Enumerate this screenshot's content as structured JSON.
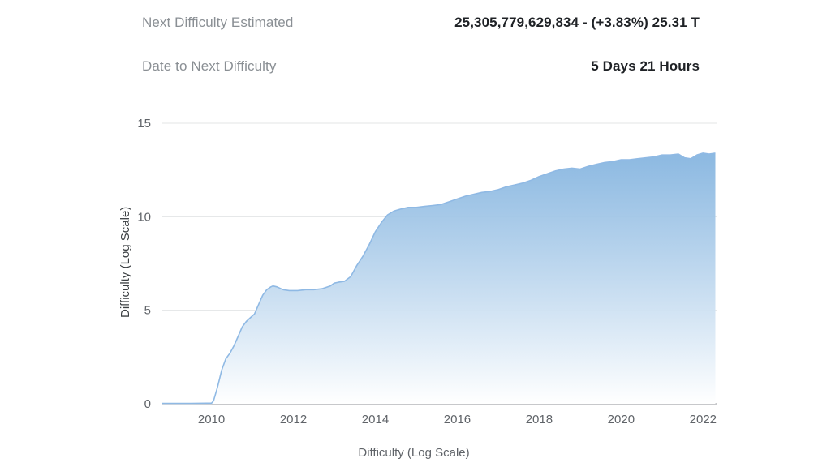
{
  "header": {
    "rows": [
      {
        "label": "Next Difficulty Estimated",
        "value": "25,305,779,629,834 - (+3.83%) 25.31 T"
      },
      {
        "label": "Date to Next Difficulty",
        "value": "5 Days 21 Hours"
      }
    ]
  },
  "chart_data": {
    "type": "area",
    "title": "",
    "xlabel": "Difficulty (Log Scale)",
    "ylabel": "Difficulty (Log Scale)",
    "xlim": [
      2008.8,
      2022.35
    ],
    "ylim": [
      0,
      15
    ],
    "xticks": [
      2010,
      2012,
      2014,
      2016,
      2018,
      2020,
      2022
    ],
    "yticks": [
      0,
      5,
      10,
      15
    ],
    "grid": true,
    "legend": false,
    "colors": {
      "line": "#8fb9e4",
      "fill_top": "#7fb1de",
      "fill_bottom": "#ffffff",
      "grid": "#e3e4e6",
      "axis": "#8f9297",
      "tick_label": "#5f6368"
    },
    "series": [
      {
        "name": "Difficulty (Log Scale)",
        "points": [
          [
            2008.8,
            0.02
          ],
          [
            2009.5,
            0.02
          ],
          [
            2010.0,
            0.03
          ],
          [
            2010.05,
            0.15
          ],
          [
            2010.15,
            0.9
          ],
          [
            2010.25,
            1.8
          ],
          [
            2010.35,
            2.4
          ],
          [
            2010.45,
            2.7
          ],
          [
            2010.55,
            3.1
          ],
          [
            2010.65,
            3.6
          ],
          [
            2010.75,
            4.1
          ],
          [
            2010.85,
            4.4
          ],
          [
            2010.95,
            4.6
          ],
          [
            2011.05,
            4.8
          ],
          [
            2011.15,
            5.3
          ],
          [
            2011.25,
            5.8
          ],
          [
            2011.35,
            6.1
          ],
          [
            2011.45,
            6.25
          ],
          [
            2011.5,
            6.3
          ],
          [
            2011.6,
            6.25
          ],
          [
            2011.75,
            6.1
          ],
          [
            2011.9,
            6.05
          ],
          [
            2012.1,
            6.05
          ],
          [
            2012.3,
            6.1
          ],
          [
            2012.5,
            6.1
          ],
          [
            2012.7,
            6.15
          ],
          [
            2012.9,
            6.3
          ],
          [
            2013.0,
            6.45
          ],
          [
            2013.1,
            6.5
          ],
          [
            2013.25,
            6.55
          ],
          [
            2013.4,
            6.8
          ],
          [
            2013.55,
            7.4
          ],
          [
            2013.7,
            7.9
          ],
          [
            2013.85,
            8.5
          ],
          [
            2014.0,
            9.2
          ],
          [
            2014.15,
            9.7
          ],
          [
            2014.3,
            10.1
          ],
          [
            2014.45,
            10.3
          ],
          [
            2014.6,
            10.4
          ],
          [
            2014.8,
            10.5
          ],
          [
            2015.0,
            10.5
          ],
          [
            2015.2,
            10.55
          ],
          [
            2015.4,
            10.6
          ],
          [
            2015.6,
            10.65
          ],
          [
            2015.8,
            10.8
          ],
          [
            2016.0,
            10.95
          ],
          [
            2016.2,
            11.1
          ],
          [
            2016.4,
            11.2
          ],
          [
            2016.6,
            11.3
          ],
          [
            2016.8,
            11.35
          ],
          [
            2017.0,
            11.45
          ],
          [
            2017.2,
            11.6
          ],
          [
            2017.4,
            11.7
          ],
          [
            2017.6,
            11.8
          ],
          [
            2017.8,
            11.95
          ],
          [
            2018.0,
            12.15
          ],
          [
            2018.2,
            12.3
          ],
          [
            2018.4,
            12.45
          ],
          [
            2018.6,
            12.55
          ],
          [
            2018.8,
            12.6
          ],
          [
            2019.0,
            12.55
          ],
          [
            2019.2,
            12.7
          ],
          [
            2019.4,
            12.8
          ],
          [
            2019.6,
            12.9
          ],
          [
            2019.8,
            12.95
          ],
          [
            2020.0,
            13.05
          ],
          [
            2020.2,
            13.05
          ],
          [
            2020.4,
            13.1
          ],
          [
            2020.6,
            13.15
          ],
          [
            2020.8,
            13.2
          ],
          [
            2021.0,
            13.3
          ],
          [
            2021.2,
            13.3
          ],
          [
            2021.4,
            13.35
          ],
          [
            2021.55,
            13.15
          ],
          [
            2021.7,
            13.1
          ],
          [
            2021.85,
            13.3
          ],
          [
            2022.0,
            13.4
          ],
          [
            2022.15,
            13.35
          ],
          [
            2022.3,
            13.4
          ]
        ]
      }
    ]
  }
}
